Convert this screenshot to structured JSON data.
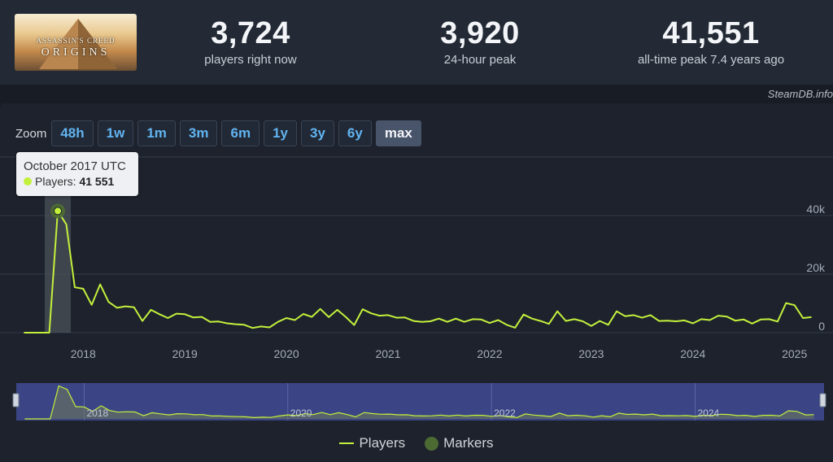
{
  "game": {
    "thumbnail_logo_top": "ASSASSIN'S CREED",
    "thumbnail_logo_main": "ORIGINS"
  },
  "stats": {
    "now_value": "3,724",
    "now_label": "players right now",
    "peak24_value": "3,920",
    "peak24_label": "24-hour peak",
    "alltime_value": "41,551",
    "alltime_label": "all-time peak 7.4 years ago"
  },
  "attribution": "SteamDB.info",
  "zoom": {
    "label": "Zoom",
    "buttons": [
      "48h",
      "1w",
      "1m",
      "3m",
      "6m",
      "1y",
      "3y",
      "6y",
      "max"
    ],
    "active": "max"
  },
  "tooltip": {
    "title": "October 2017 UTC",
    "series_label": "Players:",
    "value": "41 551"
  },
  "legend": {
    "players": "Players",
    "markers": "Markers"
  },
  "colors": {
    "line": "#c3f03c",
    "marker": "#4c6b33",
    "accent_blue": "#61b4f0",
    "navigator_bg": "#3b4585"
  },
  "chart_data": {
    "type": "line",
    "series": [
      {
        "name": "Players",
        "x": [
          "2017-06",
          "2017-07",
          "2017-08",
          "2017-09",
          "2017-10",
          "2017-11",
          "2017-12",
          "2018-01",
          "2018-02",
          "2018-03",
          "2018-04",
          "2018-05",
          "2018-06",
          "2018-07",
          "2018-08",
          "2018-09",
          "2018-10",
          "2018-11",
          "2018-12",
          "2019-01",
          "2019-02",
          "2019-03",
          "2019-04",
          "2019-05",
          "2019-06",
          "2019-07",
          "2019-08",
          "2019-09",
          "2019-10",
          "2019-11",
          "2019-12",
          "2020-01",
          "2020-02",
          "2020-03",
          "2020-04",
          "2020-05",
          "2020-06",
          "2020-07",
          "2020-08",
          "2020-09",
          "2020-10",
          "2020-11",
          "2020-12",
          "2021-01",
          "2021-02",
          "2021-03",
          "2021-04",
          "2021-05",
          "2021-06",
          "2021-07",
          "2021-08",
          "2021-09",
          "2021-10",
          "2021-11",
          "2021-12",
          "2022-01",
          "2022-02",
          "2022-03",
          "2022-04",
          "2022-05",
          "2022-06",
          "2022-07",
          "2022-08",
          "2022-09",
          "2022-10",
          "2022-11",
          "2022-12",
          "2023-01",
          "2023-02",
          "2023-03",
          "2023-04",
          "2023-05",
          "2023-06",
          "2023-07",
          "2023-08",
          "2023-09",
          "2023-10",
          "2023-11",
          "2023-12",
          "2024-01",
          "2024-02",
          "2024-03",
          "2024-04",
          "2024-05",
          "2024-06",
          "2024-07",
          "2024-08",
          "2024-09",
          "2024-10",
          "2024-11",
          "2024-12",
          "2025-01",
          "2025-02",
          "2025-03"
        ],
        "y": [
          0,
          0,
          0,
          0,
          41551,
          37000,
          15500,
          15000,
          9500,
          16500,
          10500,
          8500,
          9000,
          8700,
          4000,
          7800,
          6300,
          5000,
          6500,
          6300,
          5200,
          5400,
          3700,
          3800,
          3200,
          2900,
          2700,
          1600,
          2100,
          1800,
          3700,
          5000,
          4300,
          6400,
          5400,
          8100,
          5300,
          7800,
          5400,
          2600,
          8000,
          6600,
          5800,
          6000,
          5100,
          5200,
          4000,
          3700,
          3900,
          4800,
          3700,
          4800,
          3700,
          4600,
          4500,
          3300,
          4300,
          2700,
          1700,
          6200,
          4800,
          4000,
          3000,
          7300,
          4000,
          4600,
          3900,
          2300,
          4000,
          2700,
          7300,
          5600,
          6000,
          5100,
          6000,
          4000,
          4100,
          3900,
          4200,
          3200,
          4600,
          4300,
          5800,
          5500,
          4100,
          4500,
          3100,
          4500,
          4600,
          3800,
          10100,
          9400,
          5000,
          5300
        ]
      }
    ],
    "marker": {
      "x": "2017-10",
      "y": 41551
    },
    "xticks": [
      "2018",
      "2019",
      "2020",
      "2021",
      "2022",
      "2023",
      "2024",
      "2025"
    ],
    "yticks": [
      "40k",
      "20k",
      "0"
    ],
    "ylim": [
      0,
      60000
    ],
    "navigator_ticks": [
      "2018",
      "2020",
      "2022",
      "2024"
    ],
    "grid": true,
    "legend_position": "bottom-center"
  }
}
